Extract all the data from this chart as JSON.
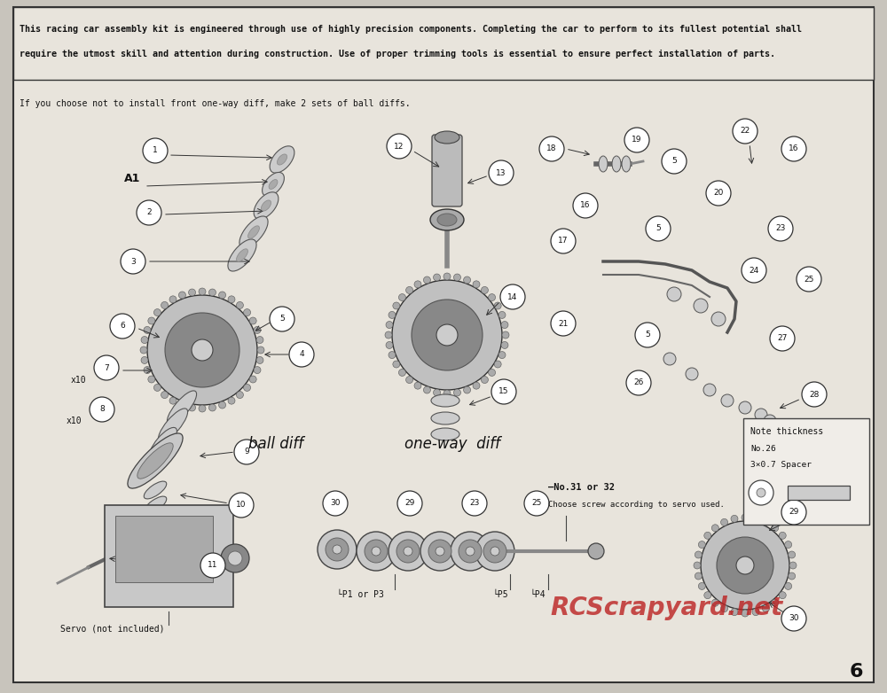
{
  "page_bg": "#c8c4bc",
  "inner_bg": "#e8e4dc",
  "border_color": "#333333",
  "text_color": "#111111",
  "header_line1": "This racing car assembly kit is engineered through use of highly precision components. Completing the car to perform to its fullest potential shall",
  "header_line2": "require the utmost skill and attention during construction. Use of proper trimming tools is essential to ensure perfect installation of parts.",
  "note_line": "If you choose not to install front one-way diff, make 2 sets of ball diffs.",
  "label_ball_diff": "ball diff",
  "label_one_way_diff": "one-way  diff",
  "label_servo": "Servo (not included)",
  "label_p1_or_p3": "└P1 or P3",
  "label_p5": "└P5",
  "label_p4": "└P4",
  "label_no31": "—No.31 or 32",
  "label_choose_screw": "Choose screw according to servo used.",
  "label_note_thickness": "Note thickness",
  "label_no26": "No.26",
  "label_3x07": "3×0.7 Spacer",
  "page_number": "6",
  "watermark_text": "RCScrapyard.net",
  "watermark_color": "#bb2222"
}
